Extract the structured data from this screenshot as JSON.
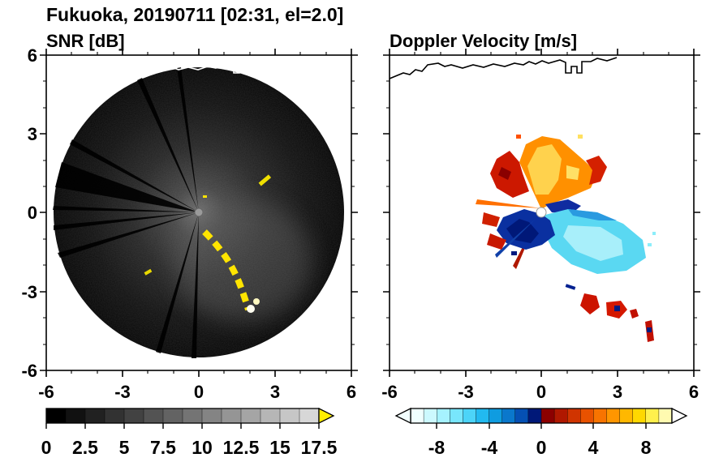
{
  "header": {
    "title": "Fukuoka, 20190711 [02:31, el=2.0]"
  },
  "panels": {
    "left": {
      "subtitle": "SNR [dB]",
      "x_ticks": [
        "-6",
        "-3",
        "0",
        "3",
        "6"
      ],
      "y_ticks": [
        "6",
        "3",
        "0",
        "-3",
        "-6"
      ]
    },
    "right": {
      "subtitle": "Doppler Velocity [m/s]",
      "x_ticks": [
        "-6",
        "-3",
        "0",
        "3",
        "6"
      ]
    }
  },
  "colorbars": {
    "snr": {
      "label": "SNR [dB]",
      "ticks": [
        "0",
        "2.5",
        "5",
        "7.5",
        "10",
        "12.5",
        "15",
        "17.5"
      ],
      "range": [
        0,
        17.5
      ],
      "colors": [
        "#000000",
        "#111111",
        "#212121",
        "#323232",
        "#424242",
        "#535353",
        "#636363",
        "#747474",
        "#848484",
        "#959595",
        "#a5a5a5",
        "#b6b6b6",
        "#c6c6c6",
        "#d7d7d7"
      ],
      "over_arrow_color": "#ffee00"
    },
    "velocity": {
      "label": "Doppler Velocity [m/s]",
      "ticks": [
        "-8",
        "-4",
        "0",
        "4",
        "8"
      ],
      "range": [
        -10,
        10
      ],
      "colors": [
        "#f0ffff",
        "#ccf9ff",
        "#a6f2ff",
        "#78e6fc",
        "#4cd4f8",
        "#22baf0",
        "#0f9ce0",
        "#0a78cc",
        "#0550b4",
        "#001878",
        "#8c0000",
        "#b01800",
        "#d03400",
        "#e85200",
        "#f87400",
        "#ff9600",
        "#ffb800",
        "#ffd800",
        "#fff04d",
        "#fffab0"
      ],
      "under_arrow_color": "#f2ffff",
      "over_arrow_color": "#ffffff"
    }
  },
  "chart_data": [
    {
      "type": "heatmap",
      "variant": "radar-ppi",
      "title": "SNR [dB]",
      "xlabel": "",
      "ylabel": "",
      "xlim": [
        -6,
        6
      ],
      "ylim": [
        -6,
        6
      ],
      "x_ticks": [
        -6,
        -3,
        0,
        3,
        6
      ],
      "y_ticks": [
        -6,
        -3,
        0,
        3,
        6
      ],
      "grid": false,
      "legend_position": "colorbar-bottom",
      "colorbar": {
        "range": [
          0,
          17.5
        ],
        "ticks": [
          0,
          2.5,
          5,
          7.5,
          10,
          12.5,
          15,
          17.5
        ],
        "colormap": "grayscale black to light gray, yellow over-range arrow"
      },
      "features": [
        "circular scan disk of radius about 5.8 centered on the radar at (0,0)",
        "diffuse low SNR speckle over the disk, brighter near the radar and toward the southeast",
        "wide black beam-blockage wedge toward the west-northwest and several thin blocked rays toward west, northwest, north and south",
        "chain of saturated (>17.5 dB, yellow/white) ground-clutter echoes arcing from just south of the radar to about (2.0,-4.0)",
        "isolated strong echoes near (2.7,1.1) and (-1.9,-2.4)",
        "white coastline traced along the top of the panel"
      ]
    },
    {
      "type": "heatmap",
      "variant": "radar-ppi",
      "title": "Doppler Velocity [m/s]",
      "xlabel": "",
      "ylabel": "",
      "xlim": [
        -6,
        6
      ],
      "ylim": [
        -6,
        6
      ],
      "x_ticks": [
        -6,
        -3,
        0,
        3,
        6
      ],
      "y_ticks": [
        -6,
        -3,
        0,
        3,
        6
      ],
      "grid": false,
      "legend_position": "colorbar-bottom",
      "colorbar": {
        "range": [
          -10,
          10
        ],
        "ticks": [
          -8,
          -4,
          0,
          4,
          8
        ],
        "colormap": "pale cyan to blue to navy (negative), dark red to orange to yellow to white (positive)"
      },
      "features": [
        "fan of positive velocities (+2 to +9 m/s, orange/yellow with red rim) north and north-northeast of the radar out to about 3",
        "strong positive patch (red, about +9 m/s) on the northwest edge of the fan",
        "negative velocities southeast of the radar: navy (-9 to -6 m/s) adjacent to the center, light cyan (-3 to -1 m/s) farther out to about (4,-2)",
        "small strong positive (red) patches just west and southwest of center",
        "scattered red and navy echoes between (1.2,-3.5) and (4.3,-5.0)",
        "white center hole at the radar location",
        "black coastline traced along the top of the panel"
      ]
    }
  ]
}
